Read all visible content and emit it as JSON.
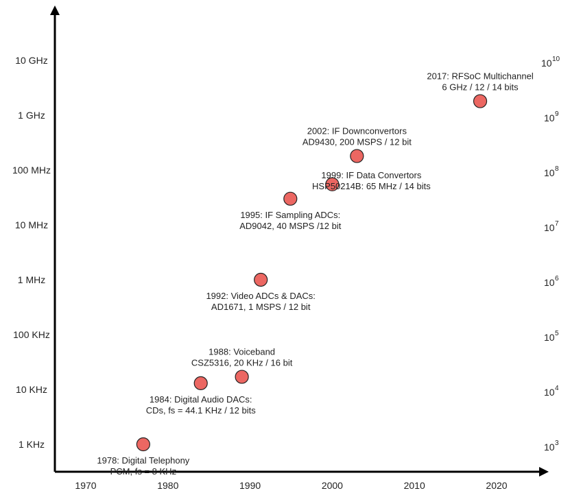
{
  "chart_data": {
    "type": "scatter",
    "title": "",
    "xlabel": "",
    "ylabel": "",
    "x_scale": "linear",
    "y_scale": "log",
    "xlim": [
      1966,
      2026
    ],
    "ylim": [
      100,
      100000000000.0
    ],
    "grid": false,
    "legend": "none",
    "x_ticks": [
      "1970",
      "1980",
      "1990",
      "2000",
      "2010",
      "2020"
    ],
    "y_ticks_left": [
      {
        "value": 1000,
        "label": "1 KHz"
      },
      {
        "value": 10000,
        "label": "10 KHz"
      },
      {
        "value": 100000,
        "label": "100 KHz"
      },
      {
        "value": 1000000,
        "label": "1 MHz"
      },
      {
        "value": 10000000,
        "label": "10 MHz"
      },
      {
        "value": 100000000,
        "label": "100 MHz"
      },
      {
        "value": 1000000000,
        "label": "1 GHz"
      },
      {
        "value": 10000000000,
        "label": "10 GHz"
      }
    ],
    "y_ticks_right": [
      {
        "value": 1000,
        "base": "10",
        "exp": "3"
      },
      {
        "value": 10000,
        "base": "10",
        "exp": "4"
      },
      {
        "value": 100000,
        "base": "10",
        "exp": "5"
      },
      {
        "value": 1000000,
        "base": "10",
        "exp": "6"
      },
      {
        "value": 10000000,
        "base": "10",
        "exp": "7"
      },
      {
        "value": 100000000,
        "base": "10",
        "exp": "8"
      },
      {
        "value": 1000000000,
        "base": "10",
        "exp": "9"
      },
      {
        "value": 10000000000,
        "base": "10",
        "exp": "10"
      }
    ],
    "points": [
      {
        "x": 1977,
        "y": 1000,
        "label_side": "below",
        "lines": [
          "1978: Digital Telephony",
          "PCM, fs = 8 KHz"
        ]
      },
      {
        "x": 1984,
        "y": 13000,
        "label_side": "below",
        "lines": [
          "1984: Digital Audio DACs:",
          "CDs, fs = 44.1 KHz / 12 bits"
        ]
      },
      {
        "x": 1989,
        "y": 17000,
        "label_side": "above",
        "lines": [
          "1988: Voiceband",
          "CSZ5316, 20 KHz / 16 bit"
        ]
      },
      {
        "x": 1991.3,
        "y": 1000000,
        "label_side": "below",
        "lines": [
          "1992: Video ADCs & DACs:",
          "AD1671, 1 MSPS / 12 bit"
        ]
      },
      {
        "x": 1994.9,
        "y": 30000000,
        "label_side": "below",
        "lines": [
          "1995: IF Sampling ADCs:",
          "AD9042, 40 MSPS /12 bit"
        ]
      },
      {
        "x": 2000,
        "y": 55000000,
        "label_side": "below-right",
        "lines": [
          "1999: IF Data Convertors",
          "HSP50214B: 65 MHz / 14 bits"
        ]
      },
      {
        "x": 2003,
        "y": 180000000,
        "label_side": "above",
        "lines": [
          "2002: IF Downconvertors",
          "AD9430, 200 MSPS / 12 bit"
        ]
      },
      {
        "x": 2018,
        "y": 1800000000,
        "label_side": "above",
        "lines": [
          "2017: RFSoC Multichannel",
          "6 GHz / 12 / 14 bits"
        ]
      }
    ],
    "point_color": "#ec6762",
    "point_stroke": "#222222"
  }
}
